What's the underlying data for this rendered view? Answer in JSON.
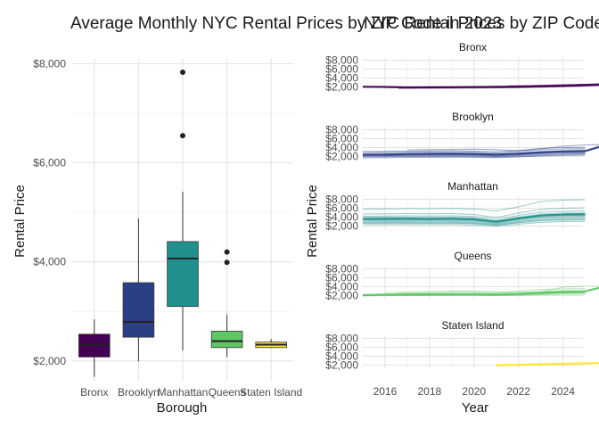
{
  "chart_data": [
    {
      "type": "box",
      "title": "Average Monthly NYC Rental Prices by ZIP Code in 2023",
      "xlabel": "Borough",
      "ylabel": "Rental Price",
      "ylim": [
        1600,
        8100
      ],
      "yticks": [
        2000,
        4000,
        6000,
        8000
      ],
      "ytick_labels": [
        "$2,000",
        "$4,000",
        "$6,000",
        "$8,000"
      ],
      "categories": [
        "Bronx",
        "Brooklyn",
        "Manhattan",
        "Queens",
        "Staten Island"
      ],
      "boxes": [
        {
          "category": "Bronx",
          "min": 1680,
          "q1": 2080,
          "median": 2330,
          "q3": 2540,
          "max": 2840,
          "outliers": [],
          "color": "#440154"
        },
        {
          "category": "Brooklyn",
          "min": 1990,
          "q1": 2480,
          "median": 2790,
          "q3": 3580,
          "max": 4880,
          "outliers": [],
          "color": "#2b3f87"
        },
        {
          "category": "Manhattan",
          "min": 2210,
          "q1": 3100,
          "median": 4070,
          "q3": 4410,
          "max": 5420,
          "outliers": [
            6550,
            7830
          ],
          "color": "#21908c"
        },
        {
          "category": "Queens",
          "min": 2080,
          "q1": 2270,
          "median": 2400,
          "q3": 2600,
          "max": 2940,
          "outliers": [
            3990,
            4200
          ],
          "color": "#5dc863"
        },
        {
          "category": "Staten Island",
          "min": 2260,
          "q1": 2270,
          "median": 2330,
          "q3": 2380,
          "max": 2440,
          "outliers": [],
          "color": "#fde725"
        }
      ],
      "grid": true,
      "legend": "none"
    },
    {
      "type": "line",
      "title": "NYC Rental Prices by ZIP Code",
      "xlabel": "Year",
      "ylabel": "Rental Price",
      "xlim": [
        2015,
        2024.9
      ],
      "xticks": [
        2016,
        2018,
        2020,
        2022,
        2024
      ],
      "ylim": [
        1300,
        8500
      ],
      "yticks": [
        2000,
        4000,
        6000,
        8000
      ],
      "ytick_labels": [
        "$2,000",
        "$4,000",
        "$6,000",
        "$8,000"
      ],
      "panels": [
        {
          "name": "Bronx",
          "color": "#440154",
          "lines": [
            {
              "start": 2015.0,
              "values": [
                2050,
                2000,
                1990,
                2010,
                2040,
                2060,
                2090,
                2150,
                2250,
                2350,
                2480
              ]
            },
            {
              "start": 2016.6,
              "values": [
                1650,
                1680,
                1700,
                1730,
                1760,
                1800,
                1880,
                2000,
                2150,
                2300,
                2450
              ]
            },
            {
              "start": 2017.0,
              "values": [
                1800,
                1820,
                1860,
                1900,
                1930,
                1950,
                2050,
                2200,
                2350,
                2600,
                2750
              ]
            },
            {
              "start": 2017.5,
              "values": [
                1900,
                1950,
                2000,
                2050,
                2100,
                2150,
                2300,
                2500,
                2700,
                2950,
                3050
              ]
            },
            {
              "start": 2020.5,
              "values": [
                2100,
                2180,
                2300,
                2450,
                2550,
                2650,
                2750,
                2800,
                2780
              ]
            },
            {
              "start": 2021.0,
              "values": [
                2000,
                2050,
                2120,
                2200,
                2320,
                2450,
                2550,
                2650
              ]
            },
            {
              "start": 2021.5,
              "values": [
                2250,
                2300,
                2400,
                2500,
                2650,
                2800,
                2900
              ]
            }
          ]
        },
        {
          "name": "Brooklyn",
          "color": "#2b3f87",
          "lines": [
            {
              "start": 2015.0,
              "values": [
                2600,
                2650,
                2700,
                2720,
                2750,
                2700,
                2500,
                2750,
                3100,
                3300,
                3350
              ]
            },
            {
              "start": 2015.0,
              "values": [
                2300,
                2350,
                2400,
                2420,
                2450,
                2400,
                2200,
                2450,
                2750,
                2900,
                2950
              ]
            },
            {
              "start": 2015.0,
              "values": [
                2100,
                2150,
                2180,
                2200,
                2220,
                2180,
                2000,
                2200,
                2450,
                2600,
                2650
              ]
            },
            {
              "start": 2015.0,
              "values": [
                1950,
                1980,
                2000,
                2020,
                2050,
                2020,
                1900,
                2050,
                2250,
                2400,
                2450
              ]
            },
            {
              "start": 2015.0,
              "values": [
                2900,
                2950,
                3000,
                3050,
                3100,
                3000,
                2800,
                3100,
                3500,
                3700,
                3750
              ]
            },
            {
              "start": 2015.0,
              "values": [
                1700,
                1750,
                1800,
                1820,
                1850,
                1820,
                1750,
                1900,
                2100,
                2250,
                2300
              ]
            },
            {
              "start": 2015.0,
              "values": [
                2450,
                2500,
                2550,
                2600,
                2650,
                2600,
                2400,
                2700,
                3000,
                3150,
                3200
              ]
            },
            {
              "start": 2015.0,
              "values": [
                3100,
                3150,
                3200,
                3250,
                3300,
                3200,
                3050,
                3350,
                3800,
                4000,
                4050
              ]
            },
            {
              "start": 2017.0,
              "values": [
                3500,
                3550,
                3600,
                3650,
                3550,
                3300,
                3700,
                4300,
                4600,
                4700
              ]
            },
            {
              "start": 2016.0,
              "values": [
                2200,
                2250,
                2300,
                2320,
                2300,
                2150,
                2350,
                2650,
                2800,
                2850
              ]
            }
          ]
        },
        {
          "name": "Manhattan",
          "color": "#21908c",
          "lines": [
            {
              "start": 2015.0,
              "values": [
                3300,
                3350,
                3350,
                3300,
                3350,
                3250,
                2700,
                3400,
                4000,
                4200,
                4250
              ]
            },
            {
              "start": 2015.0,
              "values": [
                3700,
                3750,
                3750,
                3700,
                3750,
                3600,
                3000,
                3800,
                4500,
                4700,
                4750
              ]
            },
            {
              "start": 2015.0,
              "values": [
                2900,
                2950,
                2950,
                2900,
                2950,
                2850,
                2400,
                3000,
                3550,
                3700,
                3750
              ]
            },
            {
              "start": 2015.0,
              "values": [
                4200,
                4250,
                4300,
                4250,
                4300,
                4150,
                3450,
                4400,
                5100,
                5300,
                5400
              ]
            },
            {
              "start": 2015.0,
              "values": [
                2600,
                2650,
                2650,
                2600,
                2650,
                2550,
                2200,
                2700,
                3200,
                3350,
                3400
              ]
            },
            {
              "start": 2015.0,
              "values": [
                4700,
                4750,
                4800,
                4750,
                4800,
                4600,
                3900,
                4900,
                5700,
                6000,
                6100
              ]
            },
            {
              "start": 2015.0,
              "values": [
                2300,
                2350,
                2350,
                2300,
                2350,
                2250,
                1950,
                2400,
                2850,
                3000,
                3050
              ]
            },
            {
              "start": 2015.0,
              "values": [
                5800,
                5850,
                5900,
                5900,
                5950,
                5800,
                5400,
                6300,
                7500,
                7800,
                7900
              ]
            },
            {
              "start": 2015.0,
              "values": [
                3500,
                3550,
                3550,
                3500,
                3550,
                3400,
                2850,
                3600,
                4200,
                4400,
                4450
              ]
            },
            {
              "start": 2015.0,
              "values": [
                3900,
                3950,
                3950,
                3900,
                3950,
                3800,
                3150,
                4000,
                4700,
                4900,
                4950
              ]
            },
            {
              "start": 2015.0,
              "values": [
                3100,
                3150,
                3150,
                3100,
                3150,
                3050,
                2550,
                3200,
                3800,
                3950,
                4000
              ]
            },
            {
              "start": 2015.0,
              "values": [
                2700,
                2750,
                2750,
                2700,
                2750,
                2650,
                2250,
                2800,
                3300,
                3450,
                3500
              ]
            }
          ]
        },
        {
          "name": "Queens",
          "color": "#5dc863",
          "lines": [
            {
              "start": 2015.0,
              "values": [
                2100,
                2120,
                2150,
                2180,
                2200,
                2200,
                2150,
                2250,
                2450,
                2600,
                2650
              ]
            },
            {
              "start": 2015.0,
              "values": [
                2000,
                2020,
                2050,
                2070,
                2100,
                2100,
                2050,
                2150,
                2300,
                2450,
                2500
              ]
            },
            {
              "start": 2015.0,
              "values": [
                2250,
                2280,
                2300,
                2320,
                2350,
                2350,
                2300,
                2400,
                2600,
                2800,
                2850
              ]
            },
            {
              "start": 2015.0,
              "values": [
                2150,
                2170,
                2200,
                2230,
                2260,
                2260,
                2200,
                2300,
                2500,
                2650,
                2700
              ]
            },
            {
              "start": 2015.0,
              "values": [
                1950,
                1970,
                1990,
                2010,
                2030,
                2030,
                2000,
                2080,
                2200,
                2300,
                2350
              ]
            },
            {
              "start": 2016.5,
              "values": [
                2500,
                2600,
                2700,
                2900,
                2800,
                2700,
                2800,
                3000,
                3100
              ]
            },
            {
              "start": 2016.0,
              "values": [
                2700,
                2800,
                2900,
                3000,
                2950,
                2800,
                3000,
                3350,
                3500,
                3550
              ]
            },
            {
              "start": 2017.0,
              "values": [
                2300,
                2350,
                2400,
                2450,
                2400,
                2500,
                2800,
                3900,
                4100,
                4200
              ]
            }
          ]
        },
        {
          "name": "Staten Island",
          "color": "#fde725",
          "lines": [
            {
              "start": 2021.0,
              "values": [
                2000,
                2100,
                2200,
                2350,
                2450,
                2550,
                2650,
                2700
              ]
            },
            {
              "start": 2021.0,
              "values": [
                1950,
                2050,
                2150,
                2250,
                2350,
                2450,
                2550,
                2600
              ]
            }
          ]
        }
      ],
      "grid": true,
      "legend": "none"
    }
  ]
}
